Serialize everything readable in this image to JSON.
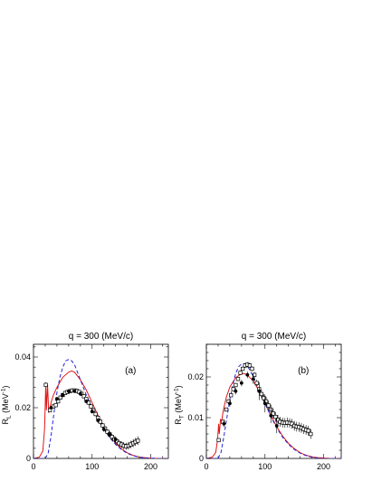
{
  "chart_data": [
    {
      "type": "scatter",
      "panel_label": "(a)",
      "title": "q = 300 (MeV/c)",
      "ylabel": "R_L (MeV⁻¹)",
      "ylabel_main": "R",
      "ylabel_sub": "L",
      "ylabel_unit": " (MeV",
      "ylabel_exp": "-1",
      "ylabel_close": ")",
      "xlabel": "",
      "xlim": [
        0,
        230
      ],
      "ylim": [
        0,
        0.045
      ],
      "x_ticks": [
        0,
        100,
        200
      ],
      "y_ticks": [
        0,
        0.02,
        0.04
      ],
      "x_tick_labels": [
        "0",
        "100",
        "200"
      ],
      "y_tick_labels": [
        "0",
        "0.02",
        "0.04"
      ],
      "grid": false,
      "series": [
        {
          "style": "curve-red-solid",
          "color": "#e01818",
          "x": [
            0,
            10,
            16,
            19,
            21,
            22,
            23,
            24,
            26,
            28,
            30,
            34,
            40,
            50,
            60,
            65,
            70,
            80,
            90,
            100,
            110,
            120,
            130,
            140,
            150,
            160,
            170,
            180,
            190,
            200,
            210,
            220,
            230
          ],
          "y": [
            0,
            0.0005,
            0.003,
            0.012,
            0.03,
            0.019,
            0.024,
            0.029,
            0.018,
            0.02,
            0.022,
            0.025,
            0.028,
            0.032,
            0.034,
            0.0345,
            0.034,
            0.031,
            0.027,
            0.022,
            0.017,
            0.0125,
            0.009,
            0.006,
            0.0038,
            0.0022,
            0.0012,
            0.0006,
            0.0003,
            0.0001,
            0,
            0,
            0
          ]
        },
        {
          "style": "curve-blue-dashed",
          "color": "#2424d8",
          "x": [
            0,
            20,
            25,
            30,
            35,
            40,
            45,
            50,
            55,
            60,
            65,
            70,
            75,
            80,
            90,
            100,
            110,
            120,
            130,
            140,
            150,
            160,
            170,
            180,
            190,
            200,
            210,
            220,
            230
          ],
          "y": [
            0,
            0,
            0.002,
            0.009,
            0.018,
            0.026,
            0.032,
            0.036,
            0.0385,
            0.039,
            0.0385,
            0.037,
            0.034,
            0.031,
            0.025,
            0.02,
            0.0155,
            0.0115,
            0.0082,
            0.0055,
            0.0035,
            0.002,
            0.0011,
            0.0005,
            0.0002,
            0.0001,
            0,
            0,
            0
          ]
        },
        {
          "style": "points-open-square",
          "x": [
            21,
            28,
            34,
            38,
            42,
            46,
            50,
            54,
            58,
            62,
            66,
            70,
            74,
            78,
            82,
            86,
            90,
            94,
            98,
            102,
            106,
            110,
            114,
            118,
            122,
            126,
            130,
            134,
            138,
            142,
            146,
            150,
            154,
            158,
            162,
            166,
            170,
            174,
            178
          ],
          "y": [
            0.029,
            0.019,
            0.0205,
            0.021,
            0.0225,
            0.024,
            0.025,
            0.0258,
            0.0262,
            0.0265,
            0.0268,
            0.0268,
            0.0266,
            0.0262,
            0.0255,
            0.0245,
            0.0235,
            0.022,
            0.0205,
            0.019,
            0.0175,
            0.016,
            0.0145,
            0.013,
            0.0118,
            0.0105,
            0.0095,
            0.0085,
            0.0075,
            0.0068,
            0.006,
            0.0055,
            0.005,
            0.0048,
            0.005,
            0.0055,
            0.006,
            0.0065,
            0.007
          ],
          "yerr": [
            0.0008,
            0.0008,
            0.0008,
            0.0008,
            0.0008,
            0.0008,
            0.0008,
            0.0008,
            0.0008,
            0.0008,
            0.0008,
            0.0008,
            0.0008,
            0.0008,
            0.0008,
            0.0008,
            0.0008,
            0.0008,
            0.0009,
            0.0009,
            0.0009,
            0.0009,
            0.001,
            0.001,
            0.001,
            0.001,
            0.0011,
            0.0011,
            0.0012,
            0.0012,
            0.0013,
            0.0013,
            0.0014,
            0.0014,
            0.0015,
            0.0015,
            0.0016,
            0.0016,
            0.0017
          ]
        },
        {
          "style": "points-filled-circle",
          "x": [
            30,
            40,
            50,
            60,
            70,
            80,
            90,
            100,
            110,
            120,
            130,
            140
          ],
          "y": [
            0.02,
            0.0235,
            0.025,
            0.0265,
            0.0265,
            0.0255,
            0.0225,
            0.0185,
            0.015,
            0.0115,
            0.0095,
            0.0075
          ],
          "yerr": [
            0.0006,
            0.0006,
            0.0006,
            0.0006,
            0.0006,
            0.0006,
            0.0008,
            0.0008,
            0.001,
            0.001,
            0.0012,
            0.0012
          ]
        }
      ]
    },
    {
      "type": "scatter",
      "panel_label": "(b)",
      "title": "q = 300 (MeV/c)",
      "ylabel": "R_T (MeV⁻¹)",
      "ylabel_main": "R",
      "ylabel_sub": "T",
      "ylabel_unit": " (MeV",
      "ylabel_exp": "-1",
      "ylabel_close": ")",
      "xlabel": "",
      "xlim": [
        0,
        230
      ],
      "ylim": [
        0,
        0.028
      ],
      "x_ticks": [
        0,
        100,
        200
      ],
      "y_ticks": [
        0,
        0.01,
        0.02
      ],
      "x_tick_labels": [
        "0",
        "100",
        "200"
      ],
      "y_tick_labels": [
        "0",
        "0.01",
        "0.02"
      ],
      "grid": false,
      "series": [
        {
          "style": "curve-red-solid",
          "color": "#e01818",
          "x": [
            0,
            10,
            16,
            19,
            21,
            22,
            23,
            24,
            26,
            28,
            30,
            34,
            40,
            50,
            60,
            65,
            70,
            80,
            90,
            100,
            110,
            120,
            130,
            140,
            150,
            160,
            170,
            180,
            190,
            200,
            210,
            220,
            230
          ],
          "y": [
            0,
            0.0003,
            0.0015,
            0.0045,
            0.0085,
            0.006,
            0.0075,
            0.0095,
            0.009,
            0.011,
            0.0125,
            0.015,
            0.0175,
            0.0198,
            0.0208,
            0.0208,
            0.0204,
            0.019,
            0.0165,
            0.0135,
            0.0105,
            0.0078,
            0.0055,
            0.0037,
            0.0024,
            0.0014,
            0.0008,
            0.0004,
            0.0002,
            0.0001,
            0,
            0,
            0
          ]
        },
        {
          "style": "curve-blue-dashed",
          "color": "#2424d8",
          "x": [
            0,
            20,
            25,
            30,
            35,
            40,
            45,
            50,
            55,
            60,
            65,
            70,
            75,
            80,
            90,
            100,
            110,
            120,
            130,
            140,
            150,
            160,
            170,
            180,
            190,
            200,
            210,
            220,
            230
          ],
          "y": [
            0,
            0,
            0.0015,
            0.0055,
            0.01,
            0.0145,
            0.018,
            0.0208,
            0.0225,
            0.0232,
            0.0232,
            0.0226,
            0.0215,
            0.02,
            0.0168,
            0.0135,
            0.0103,
            0.0075,
            0.0052,
            0.0035,
            0.0022,
            0.0013,
            0.0007,
            0.0003,
            0.0001,
            0,
            0,
            0,
            0
          ]
        },
        {
          "style": "points-open-square",
          "x": [
            21,
            28,
            34,
            38,
            42,
            46,
            50,
            54,
            58,
            62,
            66,
            70,
            74,
            78,
            82,
            86,
            90,
            94,
            98,
            102,
            106,
            110,
            114,
            118,
            122,
            126,
            130,
            134,
            138,
            142,
            146,
            150,
            154,
            158,
            162,
            166,
            170,
            174,
            178
          ],
          "y": [
            0.0045,
            0.009,
            0.012,
            0.014,
            0.0155,
            0.017,
            0.018,
            0.0195,
            0.021,
            0.022,
            0.0228,
            0.023,
            0.0228,
            0.022,
            0.0205,
            0.0185,
            0.017,
            0.0158,
            0.0148,
            0.014,
            0.013,
            0.012,
            0.011,
            0.0102,
            0.0095,
            0.009,
            0.0088,
            0.0087,
            0.0088,
            0.0087,
            0.0085,
            0.008,
            0.0078,
            0.0077,
            0.0075,
            0.0072,
            0.007,
            0.0068,
            0.006
          ],
          "yerr": [
            0.0004,
            0.0004,
            0.0005,
            0.0005,
            0.0005,
            0.0005,
            0.0005,
            0.0005,
            0.0005,
            0.0005,
            0.0006,
            0.0006,
            0.0006,
            0.0006,
            0.0007,
            0.0008,
            0.0009,
            0.001,
            0.001,
            0.0011,
            0.0011,
            0.0012,
            0.0012,
            0.0012,
            0.0012,
            0.0012,
            0.0012,
            0.0012,
            0.0012,
            0.0012,
            0.0012,
            0.0012,
            0.0012,
            0.0012,
            0.0012,
            0.0012,
            0.0012,
            0.0012,
            0.0012
          ]
        },
        {
          "style": "points-filled-circle",
          "x": [
            30,
            40,
            50,
            60,
            70,
            80,
            90,
            100,
            110,
            120
          ],
          "y": [
            0.0085,
            0.0135,
            0.0165,
            0.0185,
            0.0205,
            0.0195,
            0.0165,
            0.0135,
            0.0105,
            0.008
          ],
          "yerr": [
            0.0008,
            0.0008,
            0.0008,
            0.0008,
            0.0008,
            0.0012,
            0.0022,
            0.0022,
            0.0018,
            0.0018
          ]
        }
      ]
    }
  ]
}
